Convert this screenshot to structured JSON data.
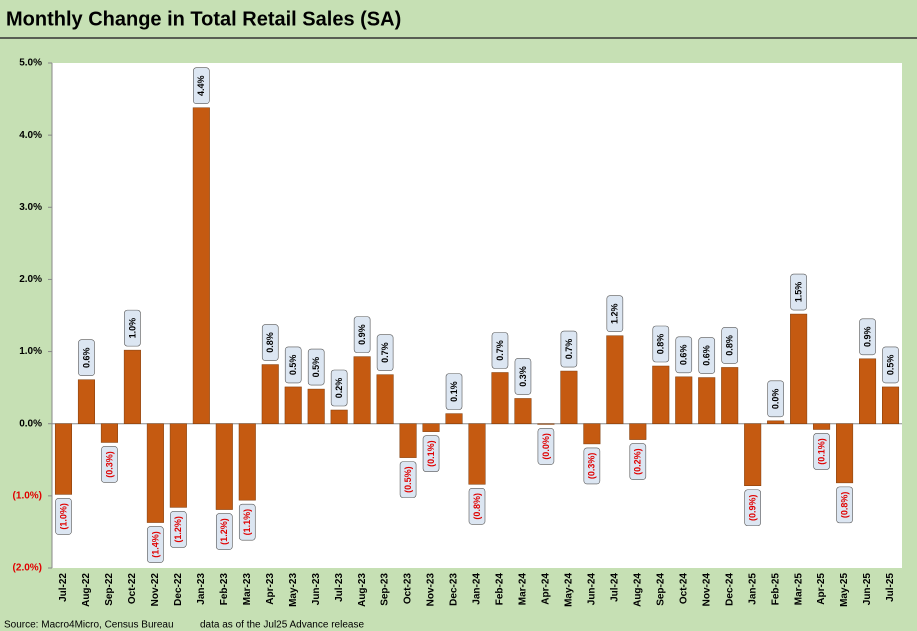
{
  "chart_data": {
    "type": "bar",
    "title": "Monthly Change in Total Retail Sales (SA)",
    "source": "Source: Macro4Micro, Census Bureau",
    "note": "data as of the Jul25 Advance release",
    "categories": [
      "Jul-22",
      "Aug-22",
      "Sep-22",
      "Oct-22",
      "Nov-22",
      "Dec-22",
      "Jan-23",
      "Feb-23",
      "Mar-23",
      "Apr-23",
      "May-23",
      "Jun-23",
      "Jul-23",
      "Aug-23",
      "Sep-23",
      "Oct-23",
      "Nov-23",
      "Dec-23",
      "Jan-24",
      "Feb-24",
      "Mar-24",
      "Apr-24",
      "May-24",
      "Jun-24",
      "Jul-24",
      "Aug-24",
      "Sep-24",
      "Oct-24",
      "Nov-24",
      "Dec-24",
      "Jan-25",
      "Feb-25",
      "Mar-25",
      "Apr-25",
      "May-25",
      "Jun-25",
      "Jul-25"
    ],
    "values": [
      -0.98,
      0.61,
      -0.26,
      1.02,
      -1.37,
      -1.16,
      4.38,
      -1.19,
      -1.06,
      0.82,
      0.51,
      0.48,
      0.19,
      0.93,
      0.68,
      -0.47,
      -0.11,
      0.14,
      -0.84,
      0.71,
      0.35,
      -0.01,
      0.73,
      -0.28,
      1.22,
      -0.22,
      0.8,
      0.65,
      0.64,
      0.78,
      -0.86,
      0.04,
      1.52,
      -0.08,
      -0.82,
      0.9,
      0.51
    ],
    "value_labels": [
      "(1.0%)",
      "0.6%",
      "(0.3%)",
      "1.0%",
      "(1.4%)",
      "(1.2%)",
      "4.4%",
      "(1.2%)",
      "(1.1%)",
      "0.8%",
      "0.5%",
      "0.5%",
      "0.2%",
      "0.9%",
      "0.7%",
      "(0.5%)",
      "(0.1%)",
      "0.1%",
      "(0.8%)",
      "0.7%",
      "0.3%",
      "(0.0%)",
      "0.7%",
      "(0.3%)",
      "1.2%",
      "(0.2%)",
      "0.8%",
      "0.6%",
      "0.6%",
      "0.8%",
      "(0.9%)",
      "0.0%",
      "1.5%",
      "(0.1%)",
      "(0.8%)",
      "0.9%",
      "0.5%"
    ],
    "color": "#c55a11",
    "negative_label_color": "#e00000",
    "ylim": [
      -2,
      5
    ],
    "yticks": [
      {
        "value": -2,
        "label": "(2.0%)"
      },
      {
        "value": -1,
        "label": "(1.0%)"
      },
      {
        "value": 0,
        "label": "0.0%"
      },
      {
        "value": 1,
        "label": "1.0%"
      },
      {
        "value": 2,
        "label": "2.0%"
      },
      {
        "value": 3,
        "label": "3.0%"
      },
      {
        "value": 4,
        "label": "4.0%"
      },
      {
        "value": 5,
        "label": "5.0%"
      }
    ],
    "grid": false
  }
}
